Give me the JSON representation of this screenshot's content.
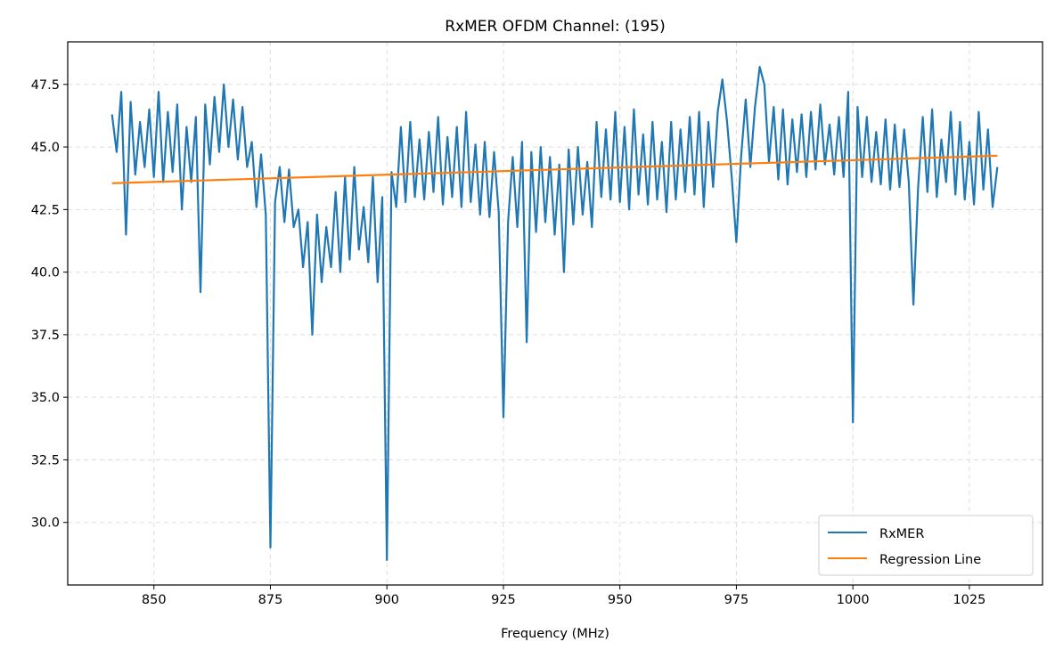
{
  "chart_data": {
    "type": "line",
    "title": "RxMER OFDM Channel: (195)",
    "xlabel": "Frequency (MHz)",
    "ylabel": "",
    "xlim": [
      831.5,
      1040.7
    ],
    "ylim": [
      27.5,
      49.2
    ],
    "xticks": [
      850,
      875,
      900,
      925,
      950,
      975,
      1000,
      1025
    ],
    "yticks": [
      30.0,
      32.5,
      35.0,
      37.5,
      40.0,
      42.5,
      45.0,
      47.5
    ],
    "xtick_labels": [
      "850",
      "875",
      "900",
      "925",
      "950",
      "975",
      "1000",
      "1025"
    ],
    "ytick_labels": [
      "30.0",
      "32.5",
      "35.0",
      "37.5",
      "40.0",
      "42.5",
      "45.0",
      "47.5"
    ],
    "grid": true,
    "legend_position": "bottom-right",
    "series": [
      {
        "name": "RxMER",
        "color": "#1f77b4",
        "x_start": 841,
        "x_end": 1031,
        "values": [
          46.3,
          44.8,
          47.2,
          41.5,
          46.8,
          43.9,
          46.0,
          44.2,
          46.5,
          43.8,
          47.2,
          43.6,
          46.4,
          44.0,
          46.7,
          42.5,
          45.8,
          43.6,
          46.2,
          39.2,
          46.7,
          44.3,
          47.0,
          44.8,
          47.5,
          45.0,
          46.9,
          44.5,
          46.6,
          44.2,
          45.2,
          42.6,
          44.7,
          42.3,
          29.0,
          42.8,
          44.2,
          42.0,
          44.1,
          41.8,
          42.5,
          40.2,
          42.0,
          37.5,
          42.3,
          39.6,
          41.8,
          40.2,
          43.2,
          40.0,
          43.8,
          40.5,
          44.2,
          40.9,
          42.6,
          40.4,
          43.8,
          39.6,
          43.0,
          28.5,
          44.0,
          42.6,
          45.8,
          42.8,
          46.0,
          43.0,
          45.3,
          42.9,
          45.6,
          43.2,
          46.2,
          42.7,
          45.4,
          43.0,
          45.8,
          42.6,
          46.4,
          42.8,
          45.1,
          42.3,
          45.2,
          42.2,
          44.8,
          42.4,
          34.2,
          42.0,
          44.6,
          41.8,
          45.2,
          37.2,
          44.8,
          41.6,
          45.0,
          42.0,
          44.6,
          41.5,
          44.3,
          40.0,
          44.9,
          41.9,
          45.0,
          42.3,
          44.4,
          41.8,
          46.0,
          43.0,
          45.7,
          42.9,
          46.4,
          42.8,
          45.8,
          42.5,
          46.5,
          43.1,
          45.5,
          42.7,
          46.0,
          42.9,
          45.2,
          42.4,
          46.0,
          42.9,
          45.7,
          43.2,
          46.2,
          43.1,
          46.4,
          42.6,
          46.0,
          43.4,
          46.4,
          47.7,
          46.0,
          43.8,
          41.2,
          44.6,
          46.9,
          44.2,
          46.6,
          48.2,
          47.5,
          44.4,
          46.6,
          43.7,
          46.5,
          43.5,
          46.1,
          44.0,
          46.3,
          43.8,
          46.4,
          44.1,
          46.7,
          44.3,
          45.9,
          43.9,
          46.2,
          43.8,
          47.2,
          34.0,
          46.6,
          43.8,
          46.2,
          43.6,
          45.6,
          43.5,
          46.1,
          43.3,
          45.9,
          43.4,
          45.7,
          43.6,
          38.7,
          43.4,
          46.2,
          43.2,
          46.5,
          43.0,
          45.3,
          43.6,
          46.4,
          43.1,
          46.0,
          42.9,
          45.2,
          42.7,
          46.4,
          43.3,
          45.7,
          42.6,
          44.2
        ]
      },
      {
        "name": "Regression Line",
        "color": "#ff7f0e",
        "x": [
          841,
          1031
        ],
        "values": [
          43.55,
          44.65
        ]
      }
    ]
  }
}
